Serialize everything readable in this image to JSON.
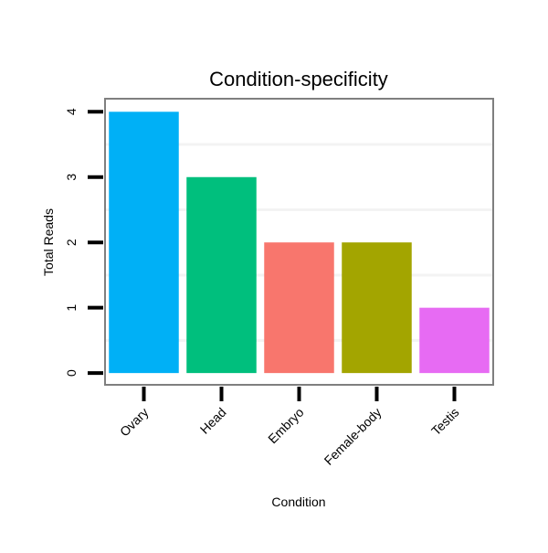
{
  "chart_data": {
    "type": "bar",
    "title": "Condition-specificity",
    "xlabel": "Condition",
    "ylabel": "Total Reads",
    "categories": [
      "Ovary",
      "Head",
      "Embryo",
      "Female-body",
      "Testis"
    ],
    "values": [
      4,
      3,
      2,
      2,
      1
    ],
    "colors": [
      "#00B0F6",
      "#00BF7D",
      "#F8766D",
      "#A3A500",
      "#E76BF3"
    ],
    "ylim": [
      -0.18,
      4.2
    ],
    "yticks": [
      0,
      1,
      2,
      3,
      4
    ],
    "ytick_labels": [
      "0",
      "1",
      "2",
      "3",
      "4"
    ],
    "grid": true,
    "legend": "none"
  }
}
